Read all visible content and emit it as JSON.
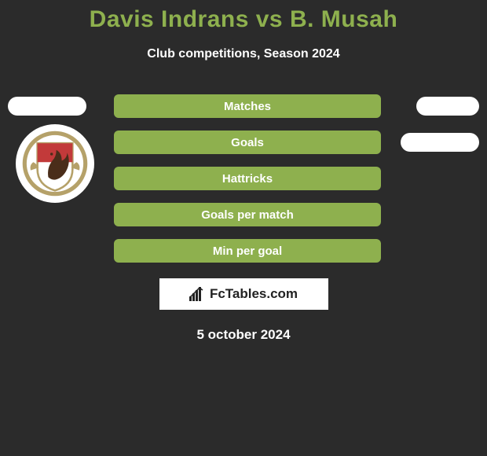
{
  "title_color": "#8eb04e",
  "background_color": "#2b2b2b",
  "text_color": "#ffffff",
  "brand_border_color": "#ffffff",
  "brand_bg_color": "#ffffff",
  "brand_text_color": "#222222",
  "header": {
    "title": "Davis Indrans vs B. Musah",
    "subtitle": "Club competitions, Season 2024"
  },
  "chart": {
    "pill_bg": "#8eb04e",
    "pill_text": "#ffffff",
    "bubble_color": "#ffffff",
    "left_bubble_width": 100,
    "right_bubble_width_primary": 80,
    "right_bubble_width_secondary": 100,
    "rows": [
      {
        "label": "Matches",
        "left_width": 100,
        "right_width": 80,
        "show_left_bubble": true,
        "show_right_bubble": true
      },
      {
        "label": "Goals",
        "left_width": 0,
        "right_width": 100,
        "show_left_bubble": false,
        "show_right_bubble": true
      },
      {
        "label": "Hattricks",
        "left_width": 0,
        "right_width": 0,
        "show_left_bubble": false,
        "show_right_bubble": false
      },
      {
        "label": "Goals per match",
        "left_width": 0,
        "right_width": 0,
        "show_left_bubble": false,
        "show_right_bubble": false
      },
      {
        "label": "Min per goal",
        "left_width": 0,
        "right_width": 0,
        "show_left_bubble": false,
        "show_right_bubble": false
      }
    ]
  },
  "logo": {
    "position_row_index": 1,
    "shield_top": "#c23a3a",
    "shield_bottom": "#ffffff",
    "shield_border": "#b5a169",
    "ribbon": "#b5a169",
    "silhouette": "#4a2d1a"
  },
  "brand": {
    "text": "FcTables.com",
    "icon_color": "#222222"
  },
  "footer": {
    "date": "5 october 2024"
  }
}
